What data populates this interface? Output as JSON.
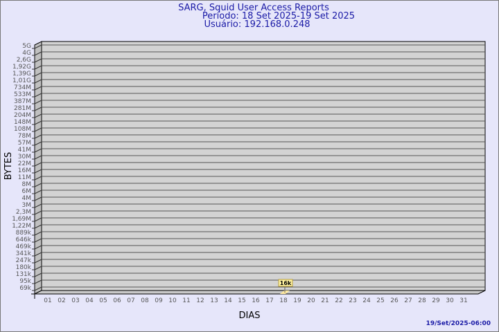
{
  "chart_data": {
    "type": "bar",
    "title": "SARG, Squid User Access Reports",
    "subtitle_lines": [
      "Período: 18 Set 2025-19 Set 2025",
      "Usuário: 192.168.0.248"
    ],
    "xlabel": "DIAS",
    "ylabel": "BYTES",
    "y_scale": "log",
    "y_tick_labels": [
      "5G",
      "4G",
      "2,6G",
      "1,92G",
      "1,39G",
      "1,01G",
      "734M",
      "533M",
      "387M",
      "281M",
      "204M",
      "148M",
      "108M",
      "78M",
      "57M",
      "41M",
      "30M",
      "22M",
      "16M",
      "11M",
      "8M",
      "6M",
      "4M",
      "3M",
      "2,3M",
      "1,69M",
      "1,22M",
      "889k",
      "646k",
      "469k",
      "341k",
      "247k",
      "180k",
      "131k",
      "95k",
      "69k"
    ],
    "categories": [
      "01",
      "02",
      "03",
      "04",
      "05",
      "06",
      "07",
      "08",
      "09",
      "10",
      "11",
      "12",
      "13",
      "14",
      "15",
      "16",
      "17",
      "18",
      "19",
      "20",
      "21",
      "22",
      "23",
      "24",
      "25",
      "26",
      "27",
      "28",
      "29",
      "30",
      "31"
    ],
    "bars": [
      {
        "category": "18",
        "value": 16000,
        "label": "16k"
      }
    ],
    "grid": true,
    "colors": {
      "background": "#e6e6fa",
      "plot": "#d3d3d3",
      "bar": "#ffe9a0",
      "label_box": "#fff2a0",
      "title": "#1a1aa6"
    },
    "timestamp": "19/Set/2025-06:00"
  }
}
